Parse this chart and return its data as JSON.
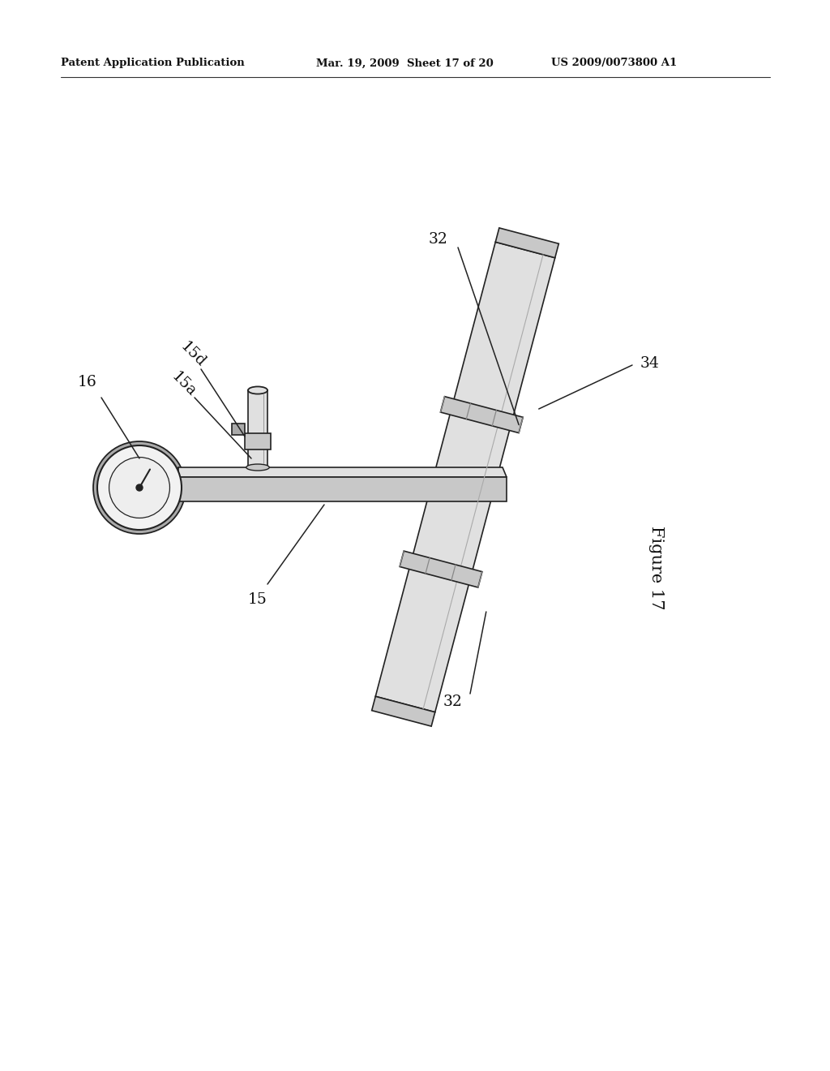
{
  "background_color": "#ffffff",
  "header_left": "Patent Application Publication",
  "header_mid": "Mar. 19, 2009  Sheet 17 of 20",
  "header_right": "US 2009/0073800 A1",
  "figure_label": "Figure 17",
  "line_color": "#222222",
  "fill_light": "#e0e0e0",
  "fill_mid": "#c8c8c8",
  "fill_dark": "#aaaaaa"
}
